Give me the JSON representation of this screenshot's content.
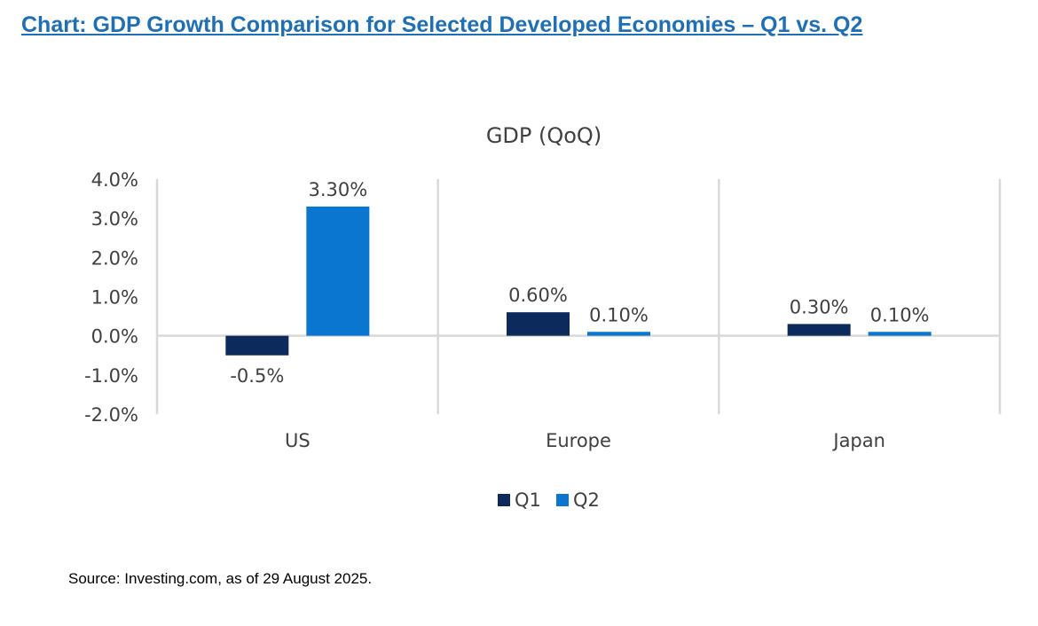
{
  "header": {
    "title": "Chart: GDP Growth Comparison for Selected Developed Economies – Q1 vs. Q2"
  },
  "source_note": "Source: Investing.com, as of 29 August 2025.",
  "colors": {
    "q1": "#0c2a5b",
    "q2": "#0a76cf",
    "grid": "#d9d9d9",
    "text": "#404040",
    "title_link": "#1f6fb5"
  },
  "chart_data": {
    "type": "bar",
    "title": "GDP (QoQ)",
    "xlabel": "",
    "ylabel": "",
    "categories": [
      "US",
      "Europe",
      "Japan"
    ],
    "series": [
      {
        "name": "Q1",
        "values": [
          -0.5,
          0.6,
          0.3
        ],
        "labels": [
          "-0.5%",
          "0.60%",
          "0.30%"
        ]
      },
      {
        "name": "Q2",
        "values": [
          3.3,
          0.1,
          0.1
        ],
        "labels": [
          "3.30%",
          "0.10%",
          "0.10%"
        ]
      }
    ],
    "ylim": [
      -2.0,
      4.0
    ],
    "yticks": [
      4.0,
      3.0,
      2.0,
      1.0,
      0.0,
      -1.0,
      -2.0
    ],
    "ytick_labels": [
      "4.0%",
      "3.0%",
      "2.0%",
      "1.0%",
      "0.0%",
      "-1.0%",
      "-2.0%"
    ],
    "grid": "vertical category separators",
    "legend": "bottom-center"
  }
}
